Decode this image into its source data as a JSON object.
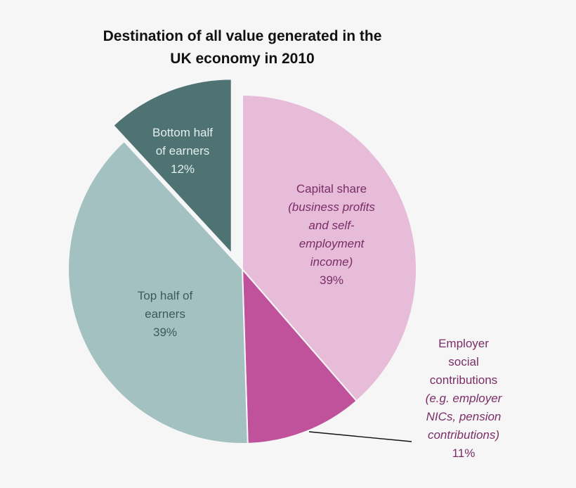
{
  "chart_data": {
    "type": "pie",
    "title": "Destination of all value generated in the UK economy in 2010",
    "title_lines": [
      "Destination of all value generated in the",
      "UK economy in 2010"
    ],
    "slices": [
      {
        "label": "Capital share",
        "sublabel": "(business profits and self-employment income)",
        "value": 39,
        "display": "39%",
        "color": "#e6bcd9",
        "text_color": "#7a2d67"
      },
      {
        "label": "Employer social contributions",
        "sublabel": "(e.g. employer NICs, pension contributions)",
        "value": 11,
        "display": "11%",
        "color": "#c0529c",
        "text_color": "#7a2d67"
      },
      {
        "label": "Top half of earners",
        "sublabel": "",
        "value": 39,
        "display": "39%",
        "color": "#a3c1c1",
        "text_color": "#3c5a5a"
      },
      {
        "label": "Bottom half of earners",
        "sublabel": "",
        "value": 12,
        "display": "12%",
        "color": "#4e7372",
        "text_color": "#e3efee",
        "exploded": true
      }
    ],
    "legend": "none (data labels on slices)",
    "start_angle": "12 o'clock, clockwise"
  },
  "labels": {
    "capital": {
      "l1": "Capital share",
      "l2": "(business profits",
      "l3": "and self-",
      "l4": "employment",
      "l5": "income)",
      "pct": "39%"
    },
    "employer": {
      "l1": "Employer",
      "l2": "social",
      "l3": "contributions",
      "l4": "(e.g. employer",
      "l5": "NICs, pension",
      "l6": "contributions)",
      "pct": "11%"
    },
    "top": {
      "l1": "Top half of",
      "l2": "earners",
      "pct": "39%"
    },
    "bottom": {
      "l1": "Bottom half",
      "l2": "of earners",
      "pct": "12%"
    }
  }
}
